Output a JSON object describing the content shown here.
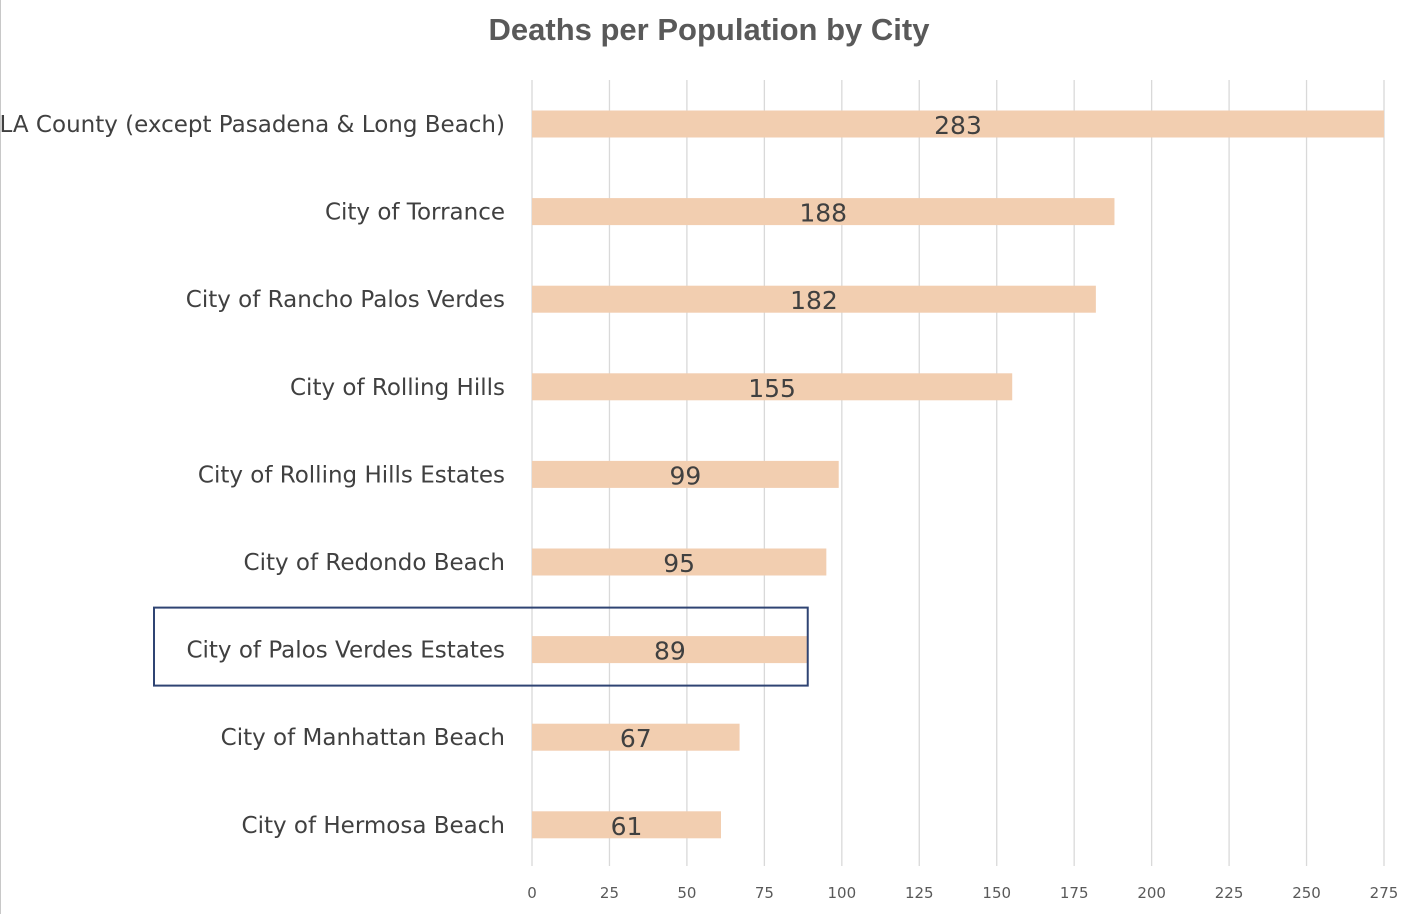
{
  "chart_data": {
    "type": "bar",
    "orientation": "horizontal",
    "title": "Deaths per Population by City",
    "xlabel": "",
    "ylabel": "",
    "categories": [
      "LA County (except Pasadena & Long Beach)",
      "City of Torrance",
      "City of Rancho Palos Verdes",
      "City of Rolling Hills",
      "City of Rolling Hills Estates",
      "City of Redondo Beach",
      "City of Palos Verdes Estates",
      "City of Manhattan Beach",
      "City of Hermosa Beach"
    ],
    "values": [
      283,
      188,
      182,
      155,
      99,
      95,
      89,
      67,
      61
    ],
    "xlim": [
      0,
      275
    ],
    "xticks": [
      0,
      25,
      50,
      75,
      100,
      125,
      150,
      175,
      200,
      225,
      250,
      275
    ],
    "grid": "vertical",
    "legend": "none",
    "highlighted_category": "City of Palos Verdes Estates",
    "colors": {
      "bar": "#F2CEB0",
      "grid": "#D9D9D9",
      "text": "#404040",
      "tick_text": "#595959",
      "highlight_box": "#2F4473"
    }
  }
}
